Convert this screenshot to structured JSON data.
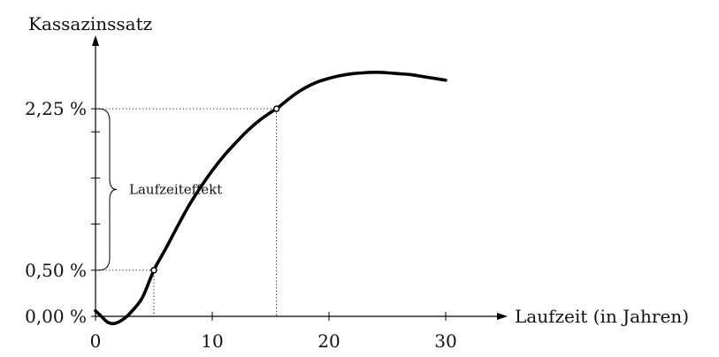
{
  "chart_data": {
    "type": "line",
    "ylabel": "Kassazinssatz",
    "xlabel": "Laufzeit (in Jahren)",
    "xlim": [
      0,
      34
    ],
    "ylim": [
      0,
      3.05
    ],
    "x_ticks": [
      0,
      10,
      20,
      30
    ],
    "x_tick_labels": [
      "0",
      "10",
      "20",
      "30"
    ],
    "y_ticks": [
      0,
      0.5,
      1.0,
      1.5,
      2.0,
      2.25
    ],
    "y_tick_labels": [
      {
        "value": 0,
        "label": "0,00 %"
      },
      {
        "value": 0.5,
        "label": "0,50 %"
      },
      {
        "value": 2.25,
        "label": "2,25 %"
      }
    ],
    "grid": false,
    "series": [
      {
        "x": [
          0,
          0.5,
          1,
          1.5,
          2,
          2.5,
          3,
          4,
          5,
          6,
          7,
          8,
          9,
          10,
          11,
          12,
          13,
          14,
          15,
          15.5,
          16,
          17,
          18,
          19,
          20,
          21,
          22,
          23,
          24,
          25,
          26,
          27,
          28,
          29,
          30
        ],
        "y": [
          0.06,
          0.0,
          -0.06,
          -0.08,
          -0.06,
          -0.02,
          0.04,
          0.2,
          0.5,
          0.73,
          0.97,
          1.2,
          1.4,
          1.58,
          1.74,
          1.88,
          2.01,
          2.12,
          2.21,
          2.25,
          2.3,
          2.4,
          2.48,
          2.54,
          2.58,
          2.61,
          2.63,
          2.64,
          2.645,
          2.64,
          2.63,
          2.62,
          2.6,
          2.58,
          2.56
        ]
      }
    ],
    "highlight_points": [
      {
        "x": 5,
        "y": 0.5
      },
      {
        "x": 15.5,
        "y": 2.25
      }
    ],
    "annotation": "Laufzeiteffekt"
  }
}
